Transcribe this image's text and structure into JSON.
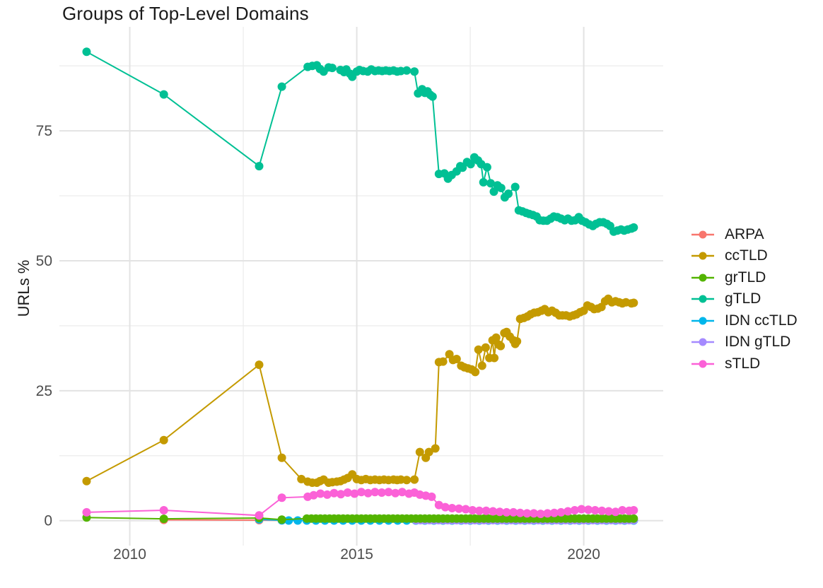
{
  "page": {
    "background": "#ffffff"
  },
  "chart_data": {
    "type": "line",
    "title": "Groups of Top-Level Domains",
    "xlabel": "",
    "ylabel": "URLs %",
    "grid": "on",
    "legend_position": "right",
    "x_axis": {
      "major_ticks": [
        2010,
        2015,
        2020
      ],
      "minor_gridlines": [
        2012.5,
        2017.5
      ],
      "range_years": [
        2008.45,
        2021.75
      ]
    },
    "y_axis": {
      "major_ticks": [
        0,
        25,
        50,
        75
      ],
      "minor_gridlines": [
        12.5,
        37.5,
        62.5,
        87.5
      ],
      "range": [
        -4.8,
        95
      ]
    },
    "draw_order": [
      "ARPA",
      "IDN ccTLD",
      "IDN gTLD",
      "grTLD",
      "sTLD",
      "ccTLD",
      "gTLD"
    ],
    "series": [
      {
        "name": "ARPA",
        "id": "arpa",
        "color": "#F8766D",
        "points": [
          [
            2010.75,
            0.15
          ],
          [
            2012.85,
            0.1
          ],
          [
            2013.35,
            0.05
          ]
        ]
      },
      {
        "name": "ccTLD",
        "id": "cctld",
        "color": "#C49A00",
        "points": [
          [
            2009.05,
            7.6
          ],
          [
            2010.75,
            15.5
          ],
          [
            2012.85,
            30
          ],
          [
            2013.35,
            12.1
          ],
          [
            2013.78,
            8
          ],
          [
            2013.92,
            7.5
          ],
          [
            2014.02,
            7.3
          ],
          [
            2014.12,
            7.3
          ],
          [
            2014.19,
            7.6
          ],
          [
            2014.27,
            7.9
          ],
          [
            2014.38,
            7.3
          ],
          [
            2014.46,
            7.4
          ],
          [
            2014.56,
            7.5
          ],
          [
            2014.64,
            7.6
          ],
          [
            2014.72,
            7.9
          ],
          [
            2014.8,
            8.2
          ],
          [
            2014.9,
            8.9
          ],
          [
            2015,
            8
          ],
          [
            2015.1,
            7.8
          ],
          [
            2015.2,
            8
          ],
          [
            2015.3,
            7.8
          ],
          [
            2015.4,
            7.9
          ],
          [
            2015.5,
            7.8
          ],
          [
            2015.6,
            7.9
          ],
          [
            2015.7,
            7.8
          ],
          [
            2015.81,
            7.9
          ],
          [
            2015.89,
            7.8
          ],
          [
            2015.97,
            7.9
          ],
          [
            2016.1,
            7.8
          ],
          [
            2016.27,
            7.9
          ],
          [
            2016.39,
            13.2
          ],
          [
            2016.52,
            12.1
          ],
          [
            2016.59,
            13.2
          ],
          [
            2016.73,
            13.9
          ],
          [
            2016.81,
            30.5
          ],
          [
            2016.9,
            30.6
          ],
          [
            2017.04,
            32
          ],
          [
            2017.12,
            30.9
          ],
          [
            2017.2,
            31.1
          ],
          [
            2017.3,
            29.8
          ],
          [
            2017.37,
            29.5
          ],
          [
            2017.45,
            29.3
          ],
          [
            2017.53,
            29.1
          ],
          [
            2017.61,
            28.6
          ],
          [
            2017.68,
            32.9
          ],
          [
            2017.76,
            29.8
          ],
          [
            2017.84,
            33.3
          ],
          [
            2017.92,
            31.3
          ],
          [
            2017.99,
            34.7
          ],
          [
            2018.03,
            31.3
          ],
          [
            2018.07,
            35.2
          ],
          [
            2018.12,
            33.9
          ],
          [
            2018.17,
            33.6
          ],
          [
            2018.25,
            36.1
          ],
          [
            2018.3,
            36.3
          ],
          [
            2018.37,
            35.4
          ],
          [
            2018.45,
            34.7
          ],
          [
            2018.49,
            34
          ],
          [
            2018.53,
            34.5
          ],
          [
            2018.6,
            38.8
          ],
          [
            2018.68,
            39
          ],
          [
            2018.76,
            39.3
          ],
          [
            2018.83,
            39.7
          ],
          [
            2018.91,
            40
          ],
          [
            2018.99,
            40.1
          ],
          [
            2019.07,
            40.4
          ],
          [
            2019.14,
            40.7
          ],
          [
            2019.22,
            40.1
          ],
          [
            2019.3,
            40.4
          ],
          [
            2019.38,
            40
          ],
          [
            2019.46,
            39.5
          ],
          [
            2019.53,
            39.5
          ],
          [
            2019.61,
            39.5
          ],
          [
            2019.69,
            39.3
          ],
          [
            2019.77,
            39.5
          ],
          [
            2019.84,
            39.7
          ],
          [
            2019.92,
            40.1
          ],
          [
            2020,
            40.4
          ],
          [
            2020.08,
            41.4
          ],
          [
            2020.16,
            41.1
          ],
          [
            2020.23,
            40.7
          ],
          [
            2020.31,
            40.8
          ],
          [
            2020.39,
            41.1
          ],
          [
            2020.47,
            42.2
          ],
          [
            2020.54,
            42.7
          ],
          [
            2020.62,
            42
          ],
          [
            2020.7,
            42.2
          ],
          [
            2020.78,
            42
          ],
          [
            2020.85,
            41.8
          ],
          [
            2020.93,
            42
          ],
          [
            2021.05,
            41.8
          ],
          [
            2021.1,
            41.9
          ]
        ]
      },
      {
        "name": "grTLD",
        "id": "grtld",
        "color": "#53B400",
        "points": [
          [
            2009.05,
            0.6
          ],
          [
            2010.75,
            0.35
          ],
          [
            2012.85,
            0.5
          ],
          [
            2013.35,
            0.2
          ]
        ],
        "flat_run": {
          "from": 2013.9,
          "to": 2021.1,
          "step": 0.1,
          "value": 0.4
        }
      },
      {
        "name": "gTLD",
        "id": "gtld",
        "color": "#00C094",
        "points": [
          [
            2009.05,
            90.2
          ],
          [
            2010.75,
            82
          ],
          [
            2012.85,
            68.2
          ],
          [
            2013.35,
            83.5
          ],
          [
            2013.92,
            87.3
          ],
          [
            2014.02,
            87.5
          ],
          [
            2014.12,
            87.6
          ],
          [
            2014.19,
            86.9
          ],
          [
            2014.27,
            86.4
          ],
          [
            2014.38,
            87.2
          ],
          [
            2014.46,
            87.1
          ],
          [
            2014.64,
            86.7
          ],
          [
            2014.72,
            86.3
          ],
          [
            2014.77,
            86.8
          ],
          [
            2014.85,
            86
          ],
          [
            2014.9,
            85.4
          ],
          [
            2015,
            86.4
          ],
          [
            2015.06,
            86.7
          ],
          [
            2015.14,
            86.5
          ],
          [
            2015.24,
            86.4
          ],
          [
            2015.32,
            86.8
          ],
          [
            2015.4,
            86.5
          ],
          [
            2015.48,
            86.6
          ],
          [
            2015.56,
            86.5
          ],
          [
            2015.64,
            86.6
          ],
          [
            2015.72,
            86.5
          ],
          [
            2015.81,
            86.6
          ],
          [
            2015.89,
            86.4
          ],
          [
            2015.97,
            86.5
          ],
          [
            2016.1,
            86.6
          ],
          [
            2016.27,
            86.4
          ],
          [
            2016.35,
            82.2
          ],
          [
            2016.44,
            83
          ],
          [
            2016.5,
            82.3
          ],
          [
            2016.56,
            82.6
          ],
          [
            2016.62,
            81.9
          ],
          [
            2016.67,
            81.6
          ],
          [
            2016.81,
            66.7
          ],
          [
            2016.93,
            66.8
          ],
          [
            2017.01,
            65.8
          ],
          [
            2017.09,
            66.5
          ],
          [
            2017.2,
            67.2
          ],
          [
            2017.28,
            68.2
          ],
          [
            2017.33,
            67.9
          ],
          [
            2017.43,
            69
          ],
          [
            2017.51,
            68.6
          ],
          [
            2017.59,
            69.9
          ],
          [
            2017.67,
            69.3
          ],
          [
            2017.74,
            68.6
          ],
          [
            2017.79,
            65.1
          ],
          [
            2017.87,
            68
          ],
          [
            2017.95,
            64.9
          ],
          [
            2018.02,
            63.3
          ],
          [
            2018.1,
            64.5
          ],
          [
            2018.18,
            64
          ],
          [
            2018.26,
            62.2
          ],
          [
            2018.34,
            62.9
          ],
          [
            2018.49,
            64.2
          ],
          [
            2018.57,
            59.7
          ],
          [
            2018.65,
            59.5
          ],
          [
            2018.73,
            59.2
          ],
          [
            2018.8,
            59
          ],
          [
            2018.88,
            58.8
          ],
          [
            2018.96,
            58.5
          ],
          [
            2019.03,
            57.8
          ],
          [
            2019.11,
            57.7
          ],
          [
            2019.19,
            57.7
          ],
          [
            2019.27,
            58.1
          ],
          [
            2019.34,
            58.5
          ],
          [
            2019.42,
            58.4
          ],
          [
            2019.5,
            58.1
          ],
          [
            2019.58,
            57.8
          ],
          [
            2019.65,
            58.1
          ],
          [
            2019.73,
            57.7
          ],
          [
            2019.81,
            57.8
          ],
          [
            2019.89,
            58.4
          ],
          [
            2019.96,
            57.7
          ],
          [
            2020.04,
            57.4
          ],
          [
            2020.12,
            57
          ],
          [
            2020.2,
            56.7
          ],
          [
            2020.27,
            57.1
          ],
          [
            2020.35,
            57.4
          ],
          [
            2020.43,
            57.4
          ],
          [
            2020.51,
            57.1
          ],
          [
            2020.58,
            56.7
          ],
          [
            2020.66,
            55.6
          ],
          [
            2020.74,
            55.8
          ],
          [
            2020.82,
            56
          ],
          [
            2020.89,
            55.8
          ],
          [
            2020.97,
            56
          ],
          [
            2021.05,
            56.2
          ],
          [
            2021.1,
            56.4
          ]
        ]
      },
      {
        "name": "IDN ccTLD",
        "id": "idn-cctld",
        "color": "#00B6EB",
        "points": [
          [
            2012.85,
            0.25
          ],
          [
            2013.35,
            0.05
          ]
        ],
        "flat_run": {
          "from": 2013.5,
          "to": 2021.1,
          "step": 0.2,
          "value": 0.03
        }
      },
      {
        "name": "IDN gTLD",
        "id": "idn-gtld",
        "color": "#A58AFF",
        "points": [],
        "flat_run": {
          "from": 2016.3,
          "to": 2021.1,
          "step": 0.1,
          "value": 0.1
        }
      },
      {
        "name": "sTLD",
        "id": "stld",
        "color": "#FB61D7",
        "points": [
          [
            2009.05,
            1.6
          ],
          [
            2010.75,
            2
          ],
          [
            2012.85,
            1
          ],
          [
            2013.35,
            4.4
          ],
          [
            2013.92,
            4.6
          ],
          [
            2014.05,
            4.9
          ],
          [
            2014.2,
            5.2
          ],
          [
            2014.35,
            5
          ],
          [
            2014.5,
            5.3
          ],
          [
            2014.65,
            5.1
          ],
          [
            2014.8,
            5.4
          ],
          [
            2014.95,
            5.2
          ],
          [
            2015.1,
            5.5
          ],
          [
            2015.25,
            5.3
          ],
          [
            2015.4,
            5.5
          ],
          [
            2015.55,
            5.4
          ],
          [
            2015.7,
            5.5
          ],
          [
            2015.85,
            5.3
          ],
          [
            2016,
            5.5
          ],
          [
            2016.15,
            5.2
          ],
          [
            2016.27,
            5.4
          ],
          [
            2016.39,
            5
          ],
          [
            2016.52,
            4.8
          ],
          [
            2016.65,
            4.6
          ],
          [
            2016.81,
            3
          ],
          [
            2016.95,
            2.6
          ],
          [
            2017.1,
            2.4
          ],
          [
            2017.25,
            2.3
          ],
          [
            2017.4,
            2.2
          ],
          [
            2017.55,
            2
          ],
          [
            2017.7,
            1.9
          ],
          [
            2017.85,
            1.9
          ],
          [
            2018,
            1.8
          ],
          [
            2018.15,
            1.7
          ],
          [
            2018.3,
            1.6
          ],
          [
            2018.45,
            1.6
          ],
          [
            2018.6,
            1.5
          ],
          [
            2018.75,
            1.4
          ],
          [
            2018.9,
            1.4
          ],
          [
            2019.05,
            1.3
          ],
          [
            2019.2,
            1.4
          ],
          [
            2019.35,
            1.5
          ],
          [
            2019.5,
            1.6
          ],
          [
            2019.65,
            1.8
          ],
          [
            2019.8,
            2
          ],
          [
            2019.95,
            2.2
          ],
          [
            2020.1,
            2.1
          ],
          [
            2020.25,
            2
          ],
          [
            2020.4,
            1.9
          ],
          [
            2020.55,
            1.8
          ],
          [
            2020.7,
            1.7
          ],
          [
            2020.85,
            2
          ],
          [
            2021,
            1.9
          ],
          [
            2021.1,
            2
          ]
        ]
      }
    ],
    "style": {
      "grid_major_color": "#E3E3E3",
      "grid_minor_color": "#EDEDED",
      "tick_label_color": "#4d4d4d",
      "point_radius": 6
    }
  }
}
